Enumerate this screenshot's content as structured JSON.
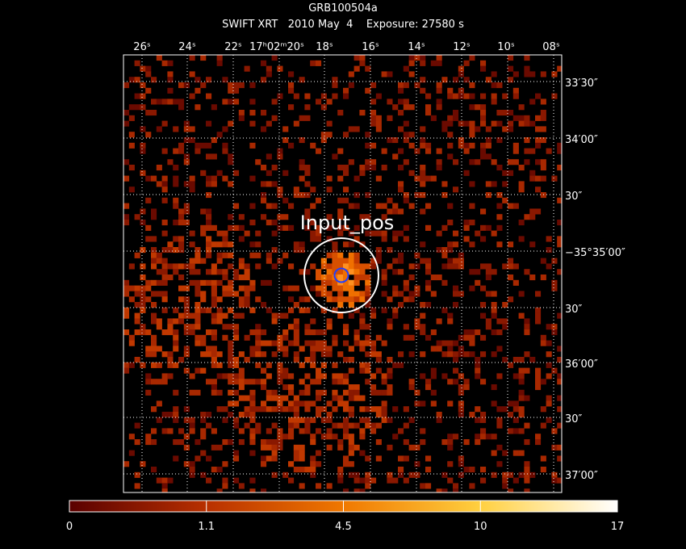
{
  "title": "GRB100504a",
  "subtitle": "SWIFT XRT   2010 May  4    Exposure: 27580 s",
  "ra_labels": [
    "26ˢ",
    "24ˢ",
    "22ˢ",
    "17ʰ02ᵐ20ˢ",
    "18ˢ",
    "16ˢ",
    "14ˢ",
    "12ˢ",
    "10ˢ",
    "08ˢ"
  ],
  "dec_labels": [
    "33′30″",
    "34′00″",
    "30″",
    "−35°35′00″",
    "30″",
    "36′00″",
    "30″",
    "37′00″"
  ],
  "source_label": "Input_pos",
  "colorbar": {
    "ticks": [
      0,
      1.1,
      4.5,
      10,
      17
    ]
  }
}
